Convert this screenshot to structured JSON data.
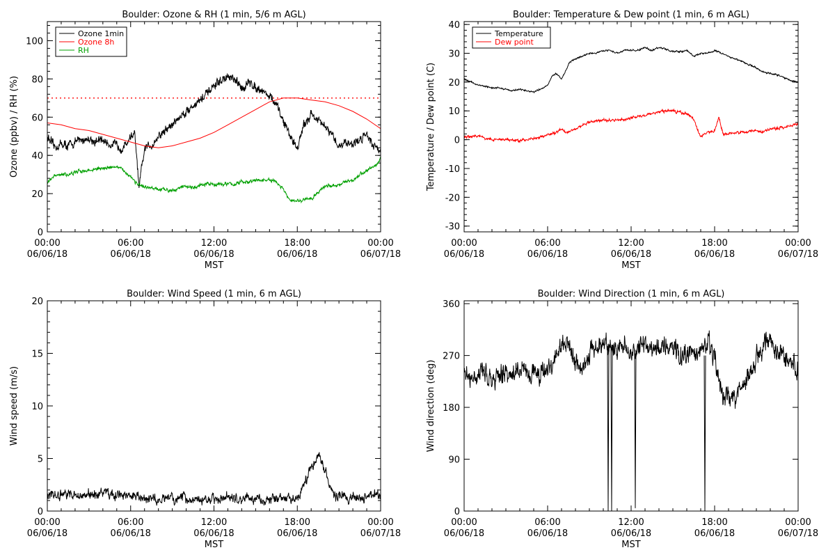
{
  "chart_data": [
    {
      "type": "line",
      "title": "Boulder: Ozone & RH (1 min, 5/6 m AGL)",
      "xlabel": "MST",
      "ylabel": "Ozone (ppbv) / RH (%)",
      "xlim": [
        0,
        24
      ],
      "ylim": [
        0,
        110
      ],
      "x_ticks": [
        {
          "x": 0,
          "time": "00:00",
          "date": "06/06/18"
        },
        {
          "x": 6,
          "time": "06:00",
          "date": "06/06/18"
        },
        {
          "x": 12,
          "time": "12:00",
          "date": "06/06/18"
        },
        {
          "x": 18,
          "time": "18:00",
          "date": "06/06/18"
        },
        {
          "x": 24,
          "time": "00:00",
          "date": "06/07/18"
        }
      ],
      "y_ticks": [
        0,
        20,
        40,
        60,
        80,
        100
      ],
      "legend": "top-left",
      "reference_line": {
        "y": 70,
        "color": "#ff0000",
        "style": "dotted"
      },
      "series": [
        {
          "name": "Ozone 1min",
          "color": "#000000",
          "x": [
            0,
            0.5,
            1,
            1.5,
            2,
            2.5,
            3,
            3.5,
            4,
            4.5,
            5,
            5.5,
            6,
            6.3,
            6.6,
            7,
            7.3,
            7.6,
            8,
            8.5,
            9,
            9.5,
            10,
            10.5,
            11,
            11.5,
            12,
            12.5,
            13,
            13.5,
            14,
            14.5,
            15,
            15.5,
            16,
            16.5,
            17,
            17.5,
            18,
            18.5,
            19,
            19.5,
            20,
            20.5,
            21,
            21.5,
            22,
            22.5,
            23,
            23.5,
            24
          ],
          "y": [
            50,
            44,
            46,
            45,
            47,
            48,
            49,
            47,
            48,
            46,
            45,
            44,
            50,
            51,
            23,
            43,
            45,
            46,
            50,
            53,
            56,
            60,
            63,
            66,
            69,
            72,
            76,
            79,
            81,
            79,
            75,
            78,
            76,
            74,
            71,
            66,
            58,
            50,
            44,
            56,
            62,
            58,
            55,
            50,
            45,
            47,
            46,
            48,
            52,
            45,
            43
          ],
          "noise": 2.5
        },
        {
          "name": "Ozone 8h",
          "color": "#ff0000",
          "x": [
            0,
            1,
            2,
            3,
            4,
            5,
            6,
            7,
            8,
            9,
            10,
            11,
            12,
            13,
            14,
            15,
            16,
            17,
            18,
            19,
            20,
            21,
            22,
            23,
            24
          ],
          "y": [
            57,
            56,
            54,
            53,
            51,
            49,
            47,
            45,
            44,
            45,
            47,
            49,
            52,
            56,
            60,
            64,
            68,
            70,
            70,
            69,
            68,
            66,
            63,
            59,
            54
          ],
          "noise": 0
        },
        {
          "name": "RH",
          "color": "#00a000",
          "x": [
            0,
            0.5,
            1,
            1.5,
            2,
            2.5,
            3,
            3.5,
            4,
            4.5,
            5,
            5.5,
            6,
            6.5,
            7,
            7.5,
            8,
            8.5,
            9,
            9.5,
            10,
            10.5,
            11,
            11.5,
            12,
            12.5,
            13,
            13.5,
            14,
            14.5,
            15,
            15.5,
            16,
            16.5,
            17,
            17.5,
            18,
            18.5,
            19,
            19.5,
            20,
            20.5,
            21,
            21.5,
            22,
            22.5,
            23,
            23.5,
            24
          ],
          "y": [
            26,
            29,
            30,
            30,
            31,
            32,
            32,
            33,
            33,
            34,
            34,
            32,
            29,
            25,
            23,
            23,
            22,
            22,
            22,
            23,
            24,
            23,
            24,
            25,
            25,
            25,
            25,
            25,
            26,
            26,
            27,
            27,
            27,
            26,
            22,
            16,
            16,
            17,
            17,
            21,
            24,
            24,
            25,
            26,
            27,
            30,
            32,
            34,
            38
          ],
          "noise": 1
        }
      ]
    },
    {
      "type": "line",
      "title": "Boulder: Temperature & Dew point (1 min, 6 m AGL)",
      "xlabel": "MST",
      "ylabel": "Temperature / Dew point (C)",
      "xlim": [
        0,
        24
      ],
      "ylim": [
        -32,
        41
      ],
      "x_ticks": [
        {
          "x": 0,
          "time": "00:00",
          "date": "06/06/18"
        },
        {
          "x": 6,
          "time": "06:00",
          "date": "06/06/18"
        },
        {
          "x": 12,
          "time": "12:00",
          "date": "06/06/18"
        },
        {
          "x": 18,
          "time": "18:00",
          "date": "06/06/18"
        },
        {
          "x": 24,
          "time": "00:00",
          "date": "06/07/18"
        }
      ],
      "y_ticks": [
        -30,
        -20,
        -10,
        0,
        10,
        20,
        30,
        40
      ],
      "legend": "top-left",
      "series": [
        {
          "name": "Temperature",
          "color": "#000000",
          "x": [
            0,
            0.5,
            1,
            1.5,
            2,
            2.5,
            3,
            3.5,
            4,
            4.5,
            5,
            5.5,
            6,
            6.3,
            6.6,
            7,
            7.3,
            7.6,
            8,
            8.5,
            9,
            9.5,
            10,
            10.5,
            11,
            11.5,
            12,
            12.5,
            13,
            13.5,
            14,
            14.5,
            15,
            15.5,
            16,
            16.5,
            17,
            17.5,
            18,
            18.5,
            19,
            19.5,
            20,
            20.5,
            21,
            21.5,
            22,
            22.5,
            23,
            23.5,
            24
          ],
          "y": [
            21,
            20,
            19,
            18.5,
            18,
            18,
            17.5,
            17,
            17.5,
            17,
            16.5,
            17.5,
            19,
            22,
            23,
            21,
            24,
            27,
            28,
            29,
            30,
            30,
            31,
            31,
            30,
            31,
            31,
            31,
            32,
            31,
            32,
            31.5,
            30.5,
            30.5,
            31,
            29,
            30,
            30,
            31,
            30,
            29,
            28,
            27,
            26,
            25,
            23.5,
            23,
            22.5,
            21.5,
            20.5,
            20
          ],
          "noise": 0.3
        },
        {
          "name": "Dew point",
          "color": "#ff0000",
          "x": [
            0,
            0.5,
            1,
            1.5,
            2,
            2.5,
            3,
            3.5,
            4,
            4.5,
            5,
            5.5,
            6,
            6.3,
            6.6,
            7,
            7.3,
            7.6,
            8,
            8.5,
            9,
            9.5,
            10,
            10.5,
            11,
            11.5,
            12,
            12.5,
            13,
            13.5,
            14,
            14.5,
            15,
            15.5,
            16,
            16.5,
            17,
            17.3,
            17.6,
            18,
            18.3,
            18.6,
            19,
            19.5,
            20,
            20.5,
            21,
            21.5,
            22,
            22.5,
            23,
            23.5,
            24
          ],
          "y": [
            1,
            1,
            1.5,
            0.5,
            0,
            0,
            0,
            0,
            -0.5,
            0,
            0.5,
            1,
            1.5,
            2,
            2.5,
            4,
            2.5,
            3,
            4,
            5,
            6,
            6.5,
            7,
            6.5,
            7,
            7,
            7.5,
            8,
            8.5,
            9,
            9.5,
            10,
            10,
            9.5,
            9,
            7,
            1,
            2,
            2.5,
            3,
            8,
            2,
            2,
            2.5,
            2.5,
            3,
            3,
            3,
            3.5,
            4,
            4.5,
            5,
            5.5
          ],
          "noise": 0.5
        }
      ]
    },
    {
      "type": "line",
      "title": "Boulder: Wind Speed (1 min, 6 m AGL)",
      "xlabel": "MST",
      "ylabel": "Wind speed (m/s)",
      "xlim": [
        0,
        24
      ],
      "ylim": [
        0,
        20
      ],
      "x_ticks": [
        {
          "x": 0,
          "time": "00:00",
          "date": "06/06/18"
        },
        {
          "x": 6,
          "time": "06:00",
          "date": "06/06/18"
        },
        {
          "x": 12,
          "time": "12:00",
          "date": "06/06/18"
        },
        {
          "x": 18,
          "time": "18:00",
          "date": "06/06/18"
        },
        {
          "x": 24,
          "time": "00:00",
          "date": "06/07/18"
        }
      ],
      "y_ticks": [
        0,
        5,
        10,
        15,
        20
      ],
      "series": [
        {
          "name": "",
          "color": "#000000",
          "x": [
            0,
            1,
            2,
            3,
            4,
            5,
            6,
            7,
            8,
            9,
            10,
            11,
            12,
            13,
            14,
            15,
            16,
            17,
            18,
            18.5,
            19,
            19.5,
            20,
            20.5,
            21,
            22,
            23,
            24
          ],
          "y": [
            1.5,
            1.6,
            1.4,
            1.5,
            1.7,
            1.6,
            1.4,
            1.2,
            1.1,
            1.1,
            1.2,
            1.1,
            1.2,
            1.2,
            1.1,
            1.2,
            1.1,
            1.2,
            1.2,
            2.5,
            4,
            5.5,
            4,
            1.8,
            1.3,
            1.3,
            1.4,
            1.5
          ],
          "noise": 0.5
        }
      ]
    },
    {
      "type": "line",
      "title": "Boulder: Wind Direction (1 min, 6 m AGL)",
      "xlabel": "MST",
      "ylabel": "Wind direction (deg)",
      "xlim": [
        0,
        24
      ],
      "ylim": [
        0,
        365
      ],
      "x_ticks": [
        {
          "x": 0,
          "time": "00:00",
          "date": "06/06/18"
        },
        {
          "x": 6,
          "time": "06:00",
          "date": "06/06/18"
        },
        {
          "x": 12,
          "time": "12:00",
          "date": "06/06/18"
        },
        {
          "x": 18,
          "time": "18:00",
          "date": "06/06/18"
        },
        {
          "x": 24,
          "time": "00:00",
          "date": "06/07/18"
        }
      ],
      "y_ticks": [
        0,
        90,
        180,
        270,
        360
      ],
      "series": [
        {
          "name": "",
          "color": "#000000",
          "x": [
            0,
            0.5,
            1,
            1.5,
            2,
            2.5,
            3,
            3.5,
            4,
            4.5,
            5,
            5.5,
            6,
            6.5,
            7,
            7.5,
            8,
            8.5,
            9,
            9.5,
            10,
            10.5,
            11,
            11.5,
            12,
            12.5,
            13,
            13.5,
            14,
            14.5,
            15,
            15.5,
            16,
            16.5,
            17,
            17.5,
            18,
            18.5,
            19,
            19.5,
            20,
            20.5,
            21,
            21.5,
            22,
            22.5,
            23,
            23.5,
            24
          ],
          "y": [
            240,
            235,
            245,
            238,
            230,
            232,
            240,
            238,
            245,
            242,
            238,
            235,
            250,
            265,
            290,
            295,
            260,
            250,
            270,
            285,
            290,
            280,
            275,
            290,
            270,
            285,
            295,
            280,
            280,
            285,
            290,
            270,
            275,
            280,
            270,
            290,
            260,
            210,
            195,
            200,
            215,
            240,
            265,
            290,
            295,
            280,
            270,
            255,
            245
          ],
          "noise": 18
        },
        {
          "name": "",
          "color": "#000000",
          "x": [
            10.3,
            10.35,
            10.4
          ],
          "y": [
            280,
            0,
            280
          ],
          "noise": 0
        },
        {
          "name": "",
          "color": "#000000",
          "x": [
            10.55,
            10.6,
            10.65
          ],
          "y": [
            280,
            0,
            280
          ],
          "noise": 0
        },
        {
          "name": "",
          "color": "#000000",
          "x": [
            12.25,
            12.3,
            12.35
          ],
          "y": [
            280,
            5,
            280
          ],
          "noise": 0
        },
        {
          "name": "",
          "color": "#000000",
          "x": [
            17.25,
            17.3,
            17.35
          ],
          "y": [
            270,
            0,
            270
          ],
          "noise": 0
        }
      ]
    }
  ]
}
